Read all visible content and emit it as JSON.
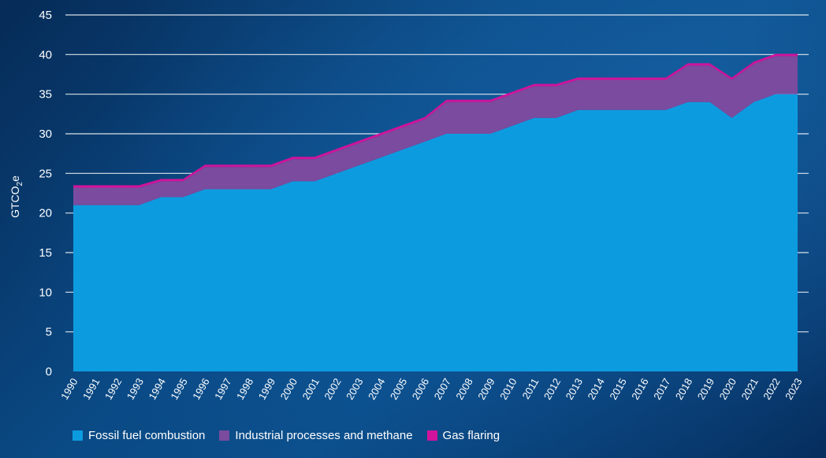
{
  "chart_data": {
    "type": "area",
    "stacked": true,
    "ylabel": "GTCO",
    "ylabel_sub": "2",
    "ylabel_suffix": "e",
    "ylim": [
      0,
      45
    ],
    "yticks": [
      0,
      5,
      10,
      15,
      20,
      25,
      30,
      35,
      40,
      45
    ],
    "grid": true,
    "legend_position": "bottom-left",
    "x": [
      "1990",
      "1991",
      "1992",
      "1993",
      "1994",
      "1995",
      "1996",
      "1997",
      "1998",
      "1999",
      "2000",
      "2001",
      "2002",
      "2003",
      "2004",
      "2005",
      "2006",
      "2007",
      "2008",
      "2009",
      "2010",
      "2011",
      "2012",
      "2013",
      "2014",
      "2015",
      "2016",
      "2017",
      "2018",
      "2019",
      "2020",
      "2021",
      "2022",
      "2023"
    ],
    "series": [
      {
        "name": "Fossil fuel combustion",
        "color": "#0d9be0",
        "values": [
          21,
          21,
          21,
          21,
          22,
          22,
          23,
          23,
          23,
          23,
          24,
          24,
          25,
          26,
          27,
          28,
          29,
          30,
          30,
          30,
          31,
          32,
          32,
          33,
          33,
          33,
          33,
          33,
          34,
          34,
          32,
          34,
          35,
          35
        ]
      },
      {
        "name": "Industrial processes and methane",
        "color": "#7a4b9e",
        "values": [
          2.2,
          2.2,
          2.2,
          2.2,
          2.0,
          2.0,
          2.8,
          2.8,
          2.8,
          2.8,
          2.8,
          2.8,
          2.8,
          2.8,
          2.8,
          2.8,
          2.8,
          4.0,
          4.0,
          4.0,
          4.0,
          4.0,
          4.0,
          3.8,
          3.8,
          3.8,
          3.8,
          3.8,
          4.6,
          4.6,
          4.8,
          4.8,
          4.8,
          4.8
        ]
      },
      {
        "name": "Gas flaring",
        "color": "#d0139b",
        "values": [
          0.3,
          0.3,
          0.3,
          0.3,
          0.3,
          0.3,
          0.3,
          0.3,
          0.3,
          0.3,
          0.3,
          0.3,
          0.3,
          0.3,
          0.3,
          0.3,
          0.3,
          0.3,
          0.3,
          0.3,
          0.3,
          0.3,
          0.3,
          0.3,
          0.3,
          0.3,
          0.3,
          0.3,
          0.3,
          0.3,
          0.3,
          0.3,
          0.3,
          0.3
        ]
      }
    ]
  }
}
